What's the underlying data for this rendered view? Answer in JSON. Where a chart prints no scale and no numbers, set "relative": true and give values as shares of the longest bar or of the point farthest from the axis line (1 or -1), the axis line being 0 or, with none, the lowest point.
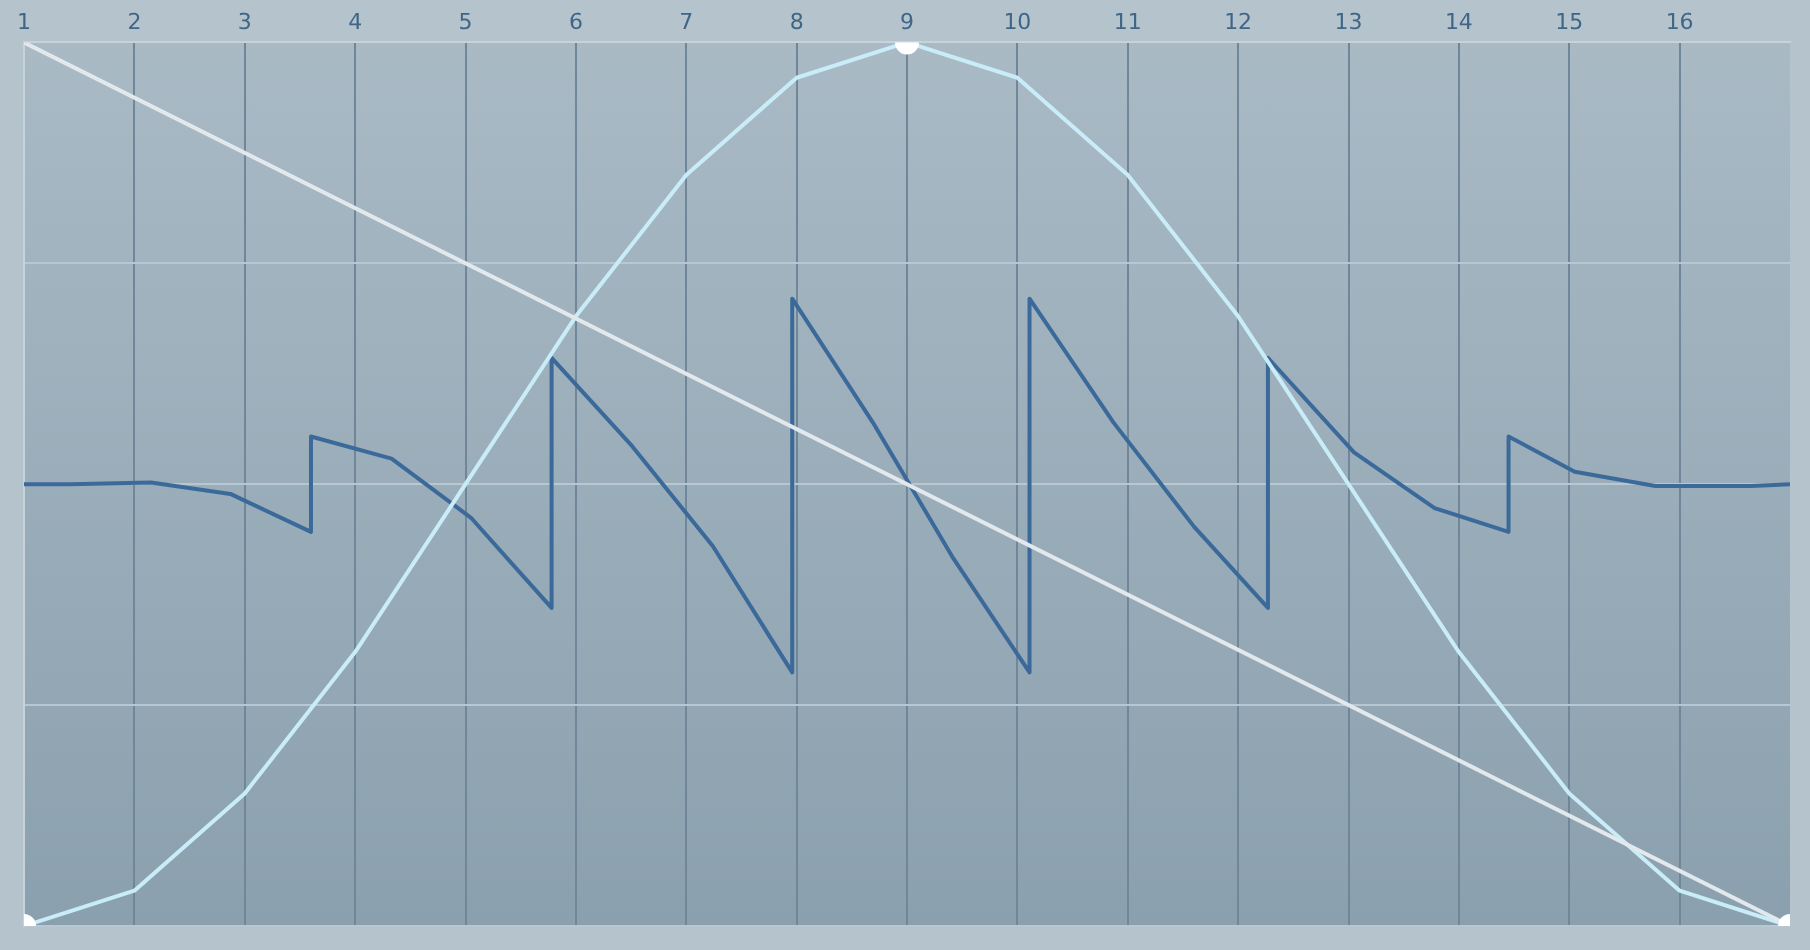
{
  "chart_data": {
    "type": "line",
    "relative": true,
    "xlim": [
      1,
      17
    ],
    "xticks": [
      1,
      2,
      3,
      4,
      5,
      6,
      7,
      8,
      9,
      10,
      11,
      12,
      13,
      14,
      15,
      16
    ],
    "tick_labels": "x",
    "grid": true,
    "legend": false,
    "marker": "none",
    "line_style": "solid",
    "series": [
      {
        "color": "#3b6a9a",
        "x": [
          1,
          1.42,
          2.15,
          2.87,
          3.6,
          3.6,
          4.33,
          5.05,
          5.78,
          5.78,
          6.51,
          7.24,
          7.96,
          7.96,
          8.69,
          9.42,
          10.11,
          10.11,
          10.87,
          11.6,
          12.27,
          12.27,
          13.05,
          13.78,
          14.45,
          14.45,
          15.05,
          15.78,
          16.65,
          17
        ],
        "values": [
          0.5,
          0.5,
          0.502,
          0.489,
          0.446,
          0.554,
          0.529,
          0.462,
          0.36,
          0.643,
          0.543,
          0.43,
          0.287,
          0.71,
          0.57,
          0.416,
          0.287,
          0.71,
          0.57,
          0.452,
          0.36,
          0.643,
          0.536,
          0.473,
          0.446,
          0.554,
          0.514,
          0.498,
          0.498,
          0.5
        ]
      },
      {
        "color": "#c8ecf8",
        "x": [
          1,
          2,
          3,
          4,
          5,
          6,
          7,
          8,
          9,
          10,
          11,
          12,
          13,
          14,
          15,
          16,
          17
        ],
        "values": [
          0,
          0.04,
          0.15,
          0.31,
          0.5,
          0.69,
          0.85,
          0.96,
          1,
          0.96,
          0.85,
          0.69,
          0.5,
          0.31,
          0.15,
          0.04,
          0
        ]
      },
      {
        "color": "#e2e8ec",
        "x": [
          1,
          17
        ],
        "values": [
          1,
          0
        ]
      },
      {
        "type": "scatter",
        "marker": "circle",
        "color": "#ffffff",
        "x": [
          1,
          9,
          17
        ],
        "values": [
          0,
          1,
          0
        ]
      }
    ]
  }
}
